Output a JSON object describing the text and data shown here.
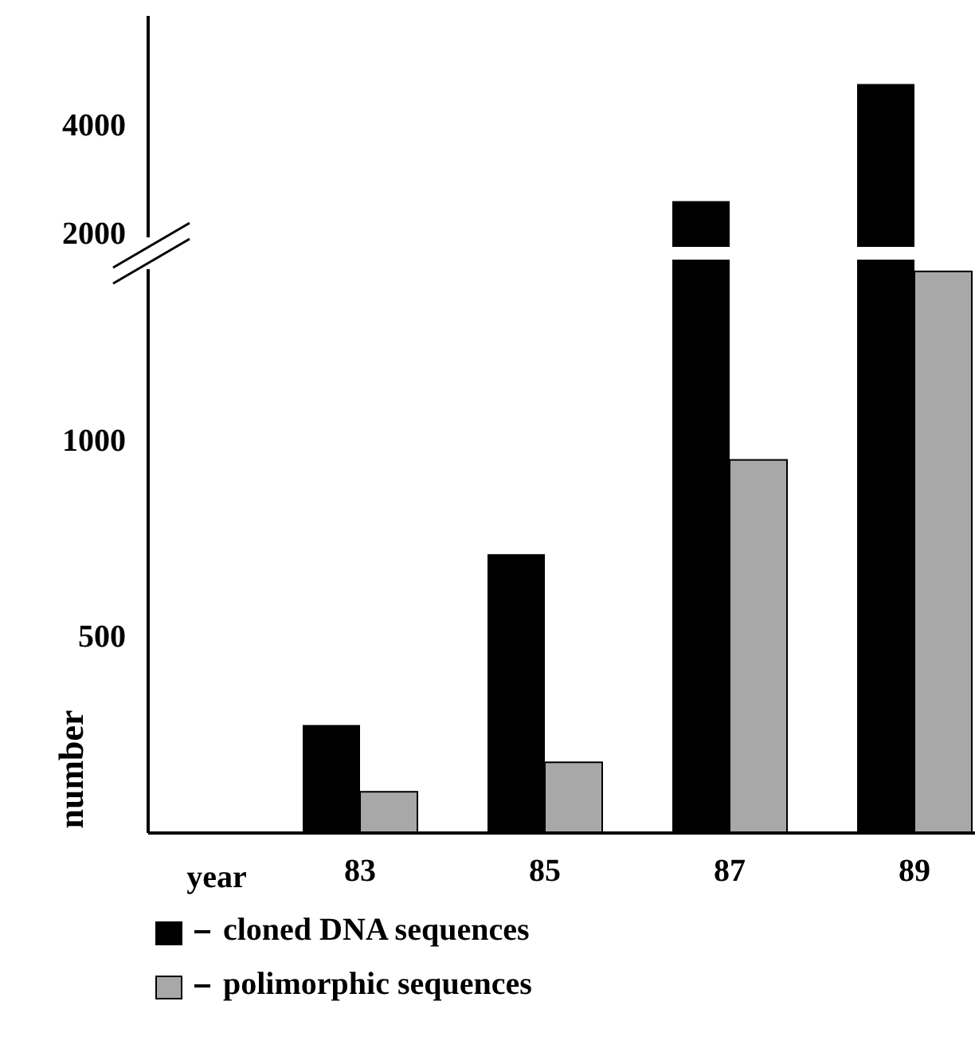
{
  "chart_data": [
    {
      "type": "bar",
      "categories": [
        "83",
        "85",
        "87",
        "89"
      ],
      "series": [
        {
          "color": "#000000",
          "values": [
            null,
            null,
            2600,
            4750
          ]
        },
        {
          "color": "#a8a8a8",
          "values": [
            null,
            null,
            null,
            null
          ]
        }
      ],
      "ylim": [
        1760,
        6000
      ],
      "yticks": [
        2000,
        4000
      ],
      "tick_labels": "y"
    },
    {
      "type": "bar",
      "xlabel": "year",
      "ylabel": "number",
      "categories": [
        "83",
        "85",
        "87",
        "89"
      ],
      "series": [
        {
          "name": "cloned DNA sequences",
          "color": "#000000",
          "values": [
            275,
            710,
            null,
            null
          ]
        },
        {
          "name": "polimorphic sequences",
          "color": "#a8a8a8",
          "values": [
            105,
            180,
            950,
            1430
          ]
        }
      ],
      "ylim": [
        0,
        1460
      ],
      "yticks": [
        500,
        1000
      ],
      "legend": "bottom"
    }
  ]
}
